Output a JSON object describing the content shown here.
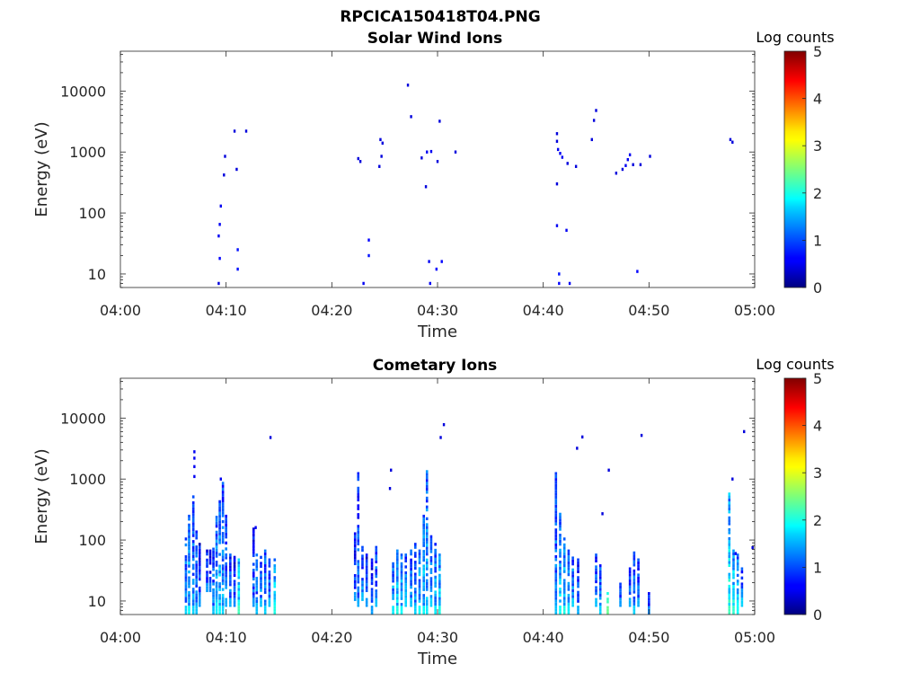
{
  "figure": {
    "title": "RPCICA150418T04.PNG"
  },
  "colors": {
    "axis": "#262626",
    "background": "#ffffff",
    "colormap": "jet"
  },
  "chart_data": [
    {
      "type": "heatmap",
      "title": "Solar Wind Ions",
      "xlabel": "Time",
      "ylabel": "Energy (eV)",
      "x_ticks": [
        "04:00",
        "04:10",
        "04:20",
        "04:30",
        "04:40",
        "04:50",
        "05:00"
      ],
      "x_range_min": [
        0,
        60
      ],
      "y_ticks": [
        "10",
        "100",
        "1000",
        "10000"
      ],
      "y_range_eV": [
        6,
        45000
      ],
      "y_scale": "log",
      "grid": false,
      "colorbar": {
        "label": "Log counts",
        "ticks": [
          "0",
          "1",
          "2",
          "3",
          "4",
          "5"
        ],
        "range": [
          0,
          5
        ]
      },
      "cells": [
        {
          "t": 9.3,
          "e": 7,
          "c": 0.4
        },
        {
          "t": 9.3,
          "e": 42,
          "c": 0.5
        },
        {
          "t": 9.4,
          "e": 18,
          "c": 0.6
        },
        {
          "t": 9.4,
          "e": 65,
          "c": 0.5
        },
        {
          "t": 9.5,
          "e": 130,
          "c": 0.5
        },
        {
          "t": 9.8,
          "e": 420,
          "c": 0.4
        },
        {
          "t": 9.9,
          "e": 850,
          "c": 0.4
        },
        {
          "t": 10.8,
          "e": 2200,
          "c": 0.4
        },
        {
          "t": 11.0,
          "e": 520,
          "c": 0.4
        },
        {
          "t": 11.1,
          "e": 12,
          "c": 0.7
        },
        {
          "t": 11.1,
          "e": 25,
          "c": 0.7
        },
        {
          "t": 11.9,
          "e": 2200,
          "c": 0.4
        },
        {
          "t": 22.5,
          "e": 780,
          "c": 0.4
        },
        {
          "t": 22.7,
          "e": 700,
          "c": 0.4
        },
        {
          "t": 23.0,
          "e": 7,
          "c": 0.5
        },
        {
          "t": 23.5,
          "e": 20,
          "c": 0.7
        },
        {
          "t": 23.5,
          "e": 36,
          "c": 0.6
        },
        {
          "t": 24.5,
          "e": 580,
          "c": 0.4
        },
        {
          "t": 24.6,
          "e": 1600,
          "c": 0.4
        },
        {
          "t": 24.8,
          "e": 1400,
          "c": 0.4
        },
        {
          "t": 24.7,
          "e": 850,
          "c": 0.4
        },
        {
          "t": 27.2,
          "e": 12500,
          "c": 0.4
        },
        {
          "t": 27.5,
          "e": 3800,
          "c": 0.4
        },
        {
          "t": 28.5,
          "e": 800,
          "c": 0.4
        },
        {
          "t": 28.9,
          "e": 270,
          "c": 0.4
        },
        {
          "t": 29.0,
          "e": 1000,
          "c": 0.5
        },
        {
          "t": 29.4,
          "e": 1020,
          "c": 0.5
        },
        {
          "t": 29.2,
          "e": 16,
          "c": 0.5
        },
        {
          "t": 29.3,
          "e": 7,
          "c": 0.5
        },
        {
          "t": 29.9,
          "e": 12,
          "c": 0.6
        },
        {
          "t": 30.0,
          "e": 700,
          "c": 0.4
        },
        {
          "t": 30.2,
          "e": 3200,
          "c": 0.4
        },
        {
          "t": 30.4,
          "e": 16,
          "c": 0.6
        },
        {
          "t": 31.7,
          "e": 1000,
          "c": 0.4
        },
        {
          "t": 41.3,
          "e": 2000,
          "c": 0.4
        },
        {
          "t": 41.3,
          "e": 1500,
          "c": 0.4
        },
        {
          "t": 41.4,
          "e": 1100,
          "c": 0.5
        },
        {
          "t": 41.6,
          "e": 950,
          "c": 0.5
        },
        {
          "t": 41.8,
          "e": 820,
          "c": 0.5
        },
        {
          "t": 41.3,
          "e": 300,
          "c": 0.4
        },
        {
          "t": 41.3,
          "e": 62,
          "c": 0.5
        },
        {
          "t": 41.5,
          "e": 10,
          "c": 0.7
        },
        {
          "t": 41.5,
          "e": 7,
          "c": 0.6
        },
        {
          "t": 42.2,
          "e": 52,
          "c": 0.5
        },
        {
          "t": 42.5,
          "e": 7,
          "c": 0.5
        },
        {
          "t": 42.3,
          "e": 650,
          "c": 0.4
        },
        {
          "t": 43.1,
          "e": 580,
          "c": 0.4
        },
        {
          "t": 44.6,
          "e": 1600,
          "c": 0.4
        },
        {
          "t": 44.8,
          "e": 3300,
          "c": 0.4
        },
        {
          "t": 45.0,
          "e": 4800,
          "c": 0.4
        },
        {
          "t": 46.9,
          "e": 450,
          "c": 0.4
        },
        {
          "t": 47.5,
          "e": 520,
          "c": 0.4
        },
        {
          "t": 47.8,
          "e": 600,
          "c": 0.5
        },
        {
          "t": 48.0,
          "e": 750,
          "c": 0.5
        },
        {
          "t": 48.2,
          "e": 900,
          "c": 0.5
        },
        {
          "t": 48.5,
          "e": 620,
          "c": 0.4
        },
        {
          "t": 48.9,
          "e": 11,
          "c": 0.6
        },
        {
          "t": 49.2,
          "e": 620,
          "c": 0.4
        },
        {
          "t": 50.1,
          "e": 850,
          "c": 0.4
        },
        {
          "t": 57.7,
          "e": 1600,
          "c": 0.4
        },
        {
          "t": 57.9,
          "e": 1450,
          "c": 0.4
        }
      ]
    },
    {
      "type": "heatmap",
      "title": "Cometary Ions",
      "xlabel": "Time",
      "ylabel": "Energy (eV)",
      "x_ticks": [
        "04:00",
        "04:10",
        "04:20",
        "04:30",
        "04:40",
        "04:50",
        "05:00"
      ],
      "x_range_min": [
        0,
        60
      ],
      "y_ticks": [
        "10",
        "100",
        "1000",
        "10000"
      ],
      "y_range_eV": [
        6,
        45000
      ],
      "y_scale": "log",
      "grid": false,
      "colorbar": {
        "label": "Log counts",
        "ticks": [
          "0",
          "1",
          "2",
          "3",
          "4",
          "5"
        ],
        "range": [
          0,
          5
        ]
      },
      "columns": [
        {
          "t": 6.2,
          "emin": 6,
          "emax": 110,
          "c": 1.3
        },
        {
          "t": 6.5,
          "emin": 6,
          "emax": 260,
          "c": 1.5
        },
        {
          "t": 6.9,
          "emin": 6,
          "emax": 540,
          "c": 1.3
        },
        {
          "t": 7.2,
          "emin": 6,
          "emax": 180,
          "c": 1.2
        },
        {
          "t": 7.5,
          "emin": 8,
          "emax": 90,
          "c": 1.0
        },
        {
          "t": 8.2,
          "emin": 14,
          "emax": 70,
          "c": 1.0
        },
        {
          "t": 8.5,
          "emin": 14,
          "emax": 70,
          "c": 0.9
        },
        {
          "t": 8.8,
          "emin": 6,
          "emax": 75,
          "c": 1.2
        },
        {
          "t": 9.1,
          "emin": 6,
          "emax": 250,
          "c": 1.4
        },
        {
          "t": 9.4,
          "emin": 6,
          "emax": 450,
          "c": 1.5
        },
        {
          "t": 9.7,
          "emin": 6,
          "emax": 900,
          "c": 1.3
        },
        {
          "t": 10.0,
          "emin": 8,
          "emax": 260,
          "c": 1.1
        },
        {
          "t": 10.4,
          "emin": 8,
          "emax": 60,
          "c": 1.1
        },
        {
          "t": 10.8,
          "emin": 8,
          "emax": 55,
          "c": 0.9
        },
        {
          "t": 11.2,
          "emin": 6,
          "emax": 50,
          "c": 1.8
        },
        {
          "t": 12.6,
          "emin": 8,
          "emax": 160,
          "c": 1.0
        },
        {
          "t": 12.9,
          "emin": 6,
          "emax": 60,
          "c": 1.2
        },
        {
          "t": 13.3,
          "emin": 8,
          "emax": 55,
          "c": 1.2
        },
        {
          "t": 13.7,
          "emin": 6,
          "emax": 70,
          "c": 1.3
        },
        {
          "t": 14.1,
          "emin": 8,
          "emax": 50,
          "c": 1.2
        },
        {
          "t": 14.6,
          "emin": 6,
          "emax": 50,
          "c": 1.6
        },
        {
          "t": 22.2,
          "emin": 10,
          "emax": 150,
          "c": 1.0
        },
        {
          "t": 22.5,
          "emin": 8,
          "emax": 1300,
          "c": 1.1
        },
        {
          "t": 22.9,
          "emin": 10,
          "emax": 80,
          "c": 1.2
        },
        {
          "t": 23.3,
          "emin": 8,
          "emax": 60,
          "c": 1.0
        },
        {
          "t": 23.8,
          "emin": 6,
          "emax": 50,
          "c": 1.0
        },
        {
          "t": 24.2,
          "emin": 8,
          "emax": 80,
          "c": 1.2
        },
        {
          "t": 25.8,
          "emin": 6,
          "emax": 60,
          "c": 1.4
        },
        {
          "t": 26.2,
          "emin": 6,
          "emax": 70,
          "c": 1.6
        },
        {
          "t": 26.6,
          "emin": 6,
          "emax": 60,
          "c": 1.5
        },
        {
          "t": 27.0,
          "emin": 8,
          "emax": 60,
          "c": 1.3
        },
        {
          "t": 27.5,
          "emin": 8,
          "emax": 70,
          "c": 1.2
        },
        {
          "t": 27.9,
          "emin": 6,
          "emax": 90,
          "c": 1.3
        },
        {
          "t": 28.3,
          "emin": 6,
          "emax": 70,
          "c": 1.5
        },
        {
          "t": 28.7,
          "emin": 6,
          "emax": 260,
          "c": 1.5
        },
        {
          "t": 29.0,
          "emin": 6,
          "emax": 1400,
          "c": 1.4
        },
        {
          "t": 29.4,
          "emin": 8,
          "emax": 120,
          "c": 1.3
        },
        {
          "t": 29.8,
          "emin": 6,
          "emax": 90,
          "c": 1.4
        },
        {
          "t": 30.2,
          "emin": 6,
          "emax": 60,
          "c": 1.6
        },
        {
          "t": 41.2,
          "emin": 6,
          "emax": 1300,
          "c": 1.2
        },
        {
          "t": 41.6,
          "emin": 6,
          "emax": 280,
          "c": 1.5
        },
        {
          "t": 42.0,
          "emin": 6,
          "emax": 110,
          "c": 1.6
        },
        {
          "t": 42.4,
          "emin": 6,
          "emax": 70,
          "c": 1.4
        },
        {
          "t": 42.8,
          "emin": 8,
          "emax": 60,
          "c": 1.3
        },
        {
          "t": 43.3,
          "emin": 6,
          "emax": 50,
          "c": 1.1
        },
        {
          "t": 45.0,
          "emin": 8,
          "emax": 60,
          "c": 1.2
        },
        {
          "t": 45.4,
          "emin": 6,
          "emax": 40,
          "c": 1.3
        },
        {
          "t": 46.1,
          "emin": 6,
          "emax": 14,
          "c": 2.0
        },
        {
          "t": 47.3,
          "emin": 8,
          "emax": 20,
          "c": 1.0
        },
        {
          "t": 48.2,
          "emin": 8,
          "emax": 40,
          "c": 1.1
        },
        {
          "t": 48.6,
          "emin": 6,
          "emax": 65,
          "c": 1.3
        },
        {
          "t": 49.0,
          "emin": 8,
          "emax": 50,
          "c": 1.1
        },
        {
          "t": 50.0,
          "emin": 6,
          "emax": 14,
          "c": 0.9
        },
        {
          "t": 57.6,
          "emin": 6,
          "emax": 600,
          "c": 1.8
        },
        {
          "t": 58.0,
          "emin": 6,
          "emax": 70,
          "c": 1.7
        },
        {
          "t": 58.4,
          "emin": 6,
          "emax": 60,
          "c": 1.5
        },
        {
          "t": 58.8,
          "emin": 8,
          "emax": 40,
          "c": 1.3
        }
      ],
      "cells": [
        {
          "t": 7.0,
          "e": 2800,
          "c": 0.5
        },
        {
          "t": 7.0,
          "e": 2200,
          "c": 0.5
        },
        {
          "t": 7.0,
          "e": 1600,
          "c": 0.5
        },
        {
          "t": 7.0,
          "e": 1100,
          "c": 0.5
        },
        {
          "t": 9.5,
          "e": 1000,
          "c": 0.5
        },
        {
          "t": 12.8,
          "e": 160,
          "c": 0.5
        },
        {
          "t": 14.2,
          "e": 4800,
          "c": 0.4
        },
        {
          "t": 25.6,
          "e": 1400,
          "c": 0.4
        },
        {
          "t": 25.5,
          "e": 700,
          "c": 0.4
        },
        {
          "t": 30.3,
          "e": 4800,
          "c": 0.4
        },
        {
          "t": 30.6,
          "e": 7800,
          "c": 0.4
        },
        {
          "t": 43.2,
          "e": 3200,
          "c": 0.4
        },
        {
          "t": 43.7,
          "e": 4900,
          "c": 0.4
        },
        {
          "t": 46.2,
          "e": 1400,
          "c": 0.4
        },
        {
          "t": 45.6,
          "e": 270,
          "c": 0.4
        },
        {
          "t": 49.3,
          "e": 5200,
          "c": 0.4
        },
        {
          "t": 57.9,
          "e": 1000,
          "c": 0.4
        },
        {
          "t": 58.2,
          "e": 60,
          "c": 0.5
        },
        {
          "t": 59.0,
          "e": 6000,
          "c": 0.4
        },
        {
          "t": 59.8,
          "e": 75,
          "c": 0.4
        }
      ]
    }
  ]
}
